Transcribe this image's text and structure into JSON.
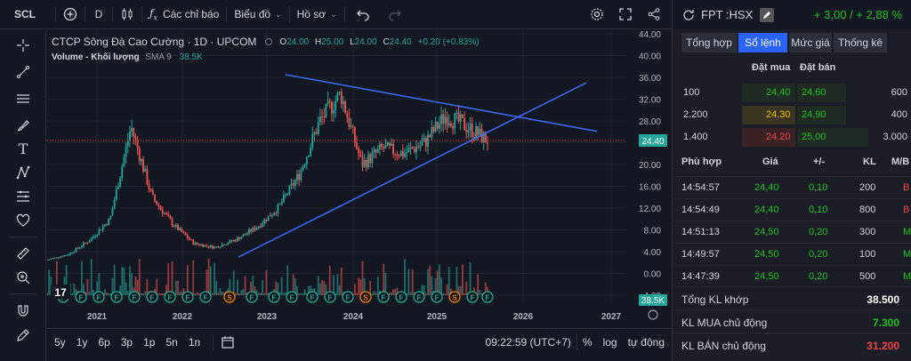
{
  "toolbar": {
    "symbol": "SCL",
    "interval": "D",
    "indicators_label": "Các chỉ báo",
    "chart_menu_label": "Biểu đồ",
    "profile_menu_label": "Hồ sơ"
  },
  "legend": {
    "title": "CTCP Sông Đà Cao Cường · 1D · UPCOM",
    "o_label": "O",
    "o": "24.00",
    "h_label": "H",
    "h": "25.00",
    "l_label": "L",
    "l": "24.00",
    "c_label": "C",
    "c": "24.40",
    "change": "+0.20 (+0.83%)",
    "volume_label": "Volume - Khối lượng",
    "volume_ma": "SMA 9",
    "volume_value": "38.5K"
  },
  "price_axis": [
    "44.00",
    "40.00",
    "36.00",
    "32.00",
    "28.00",
    "24.00",
    "20.00",
    "16.00",
    "12.00",
    "8.00",
    "4.00",
    "0.00",
    "-4.00"
  ],
  "last_price_tag": "24.40",
  "volume_tag": "38.5K",
  "time_axis": [
    "2021",
    "2022",
    "2023",
    "2024",
    "2025",
    "2026",
    "2027"
  ],
  "bottom": {
    "ranges": [
      "5y",
      "1y",
      "6p",
      "3p",
      "1p",
      "5n",
      "1n"
    ],
    "clock": "09:22:59 (UTC+7)",
    "percent": "%",
    "log": "log",
    "auto": "tự động"
  },
  "quote": {
    "symbol": "FPT :HSX",
    "change": "+ 3,00 / + 2,88 %",
    "tabs": [
      "Tổng hợp",
      "Sổ lệnh",
      "Mức giá",
      "Thống kê"
    ],
    "active_tab": "Sổ lệnh",
    "book_headers": {
      "bid": "Đặt mua",
      "ask": "Đặt bán"
    },
    "book": [
      {
        "bid_vol": "100",
        "bid": "24,40",
        "ask": "24,60",
        "ask_vol": "600"
      },
      {
        "bid_vol": "2.200",
        "bid": "24.30",
        "ask": "24,90",
        "ask_vol": "400"
      },
      {
        "bid_vol": "1.400",
        "bid": "24.20",
        "ask": "25,00",
        "ask_vol": "3.000"
      }
    ],
    "trade_headers": {
      "time": "Phù hợp",
      "price": "Giá",
      "change": "+/-",
      "vol": "KL",
      "side": "M/B"
    },
    "trades": [
      {
        "time": "14:54:57",
        "price": "24,40",
        "change": "0,10",
        "vol": "200",
        "side": "B"
      },
      {
        "time": "14:54:49",
        "price": "24,40",
        "change": "0,10",
        "vol": "800",
        "side": "B"
      },
      {
        "time": "14:51:13",
        "price": "24,50",
        "change": "0,20",
        "vol": "300",
        "side": "M"
      },
      {
        "time": "14:49:57",
        "price": "24,50",
        "change": "0,20",
        "vol": "100",
        "side": "M"
      },
      {
        "time": "14:47:39",
        "price": "24,50",
        "change": "0,20",
        "vol": "500",
        "side": "M"
      }
    ],
    "totals": [
      {
        "label": "Tổng KL khớp",
        "value": "38.500"
      },
      {
        "label": "KL MUA chủ động",
        "value": "7.300"
      },
      {
        "label": "KL BÁN chủ động",
        "value": "31.200"
      }
    ]
  },
  "colors": {
    "up": "#26a69a",
    "down": "#ef5350",
    "trendline": "#3d6dff",
    "bg": "#131722"
  },
  "chart_data": {
    "type": "line",
    "title": "CTCP Sông Đà Cao Cường · 1D · UPCOM",
    "x": [
      "2021-01",
      "2021-04",
      "2021-07",
      "2021-10",
      "2022-01",
      "2022-04",
      "2022-07",
      "2022-10",
      "2023-01",
      "2023-04",
      "2023-07",
      "2023-10",
      "2024-01",
      "2024-03",
      "2024-05",
      "2024-07",
      "2024-09",
      "2024-11",
      "2025-01",
      "2025-03",
      "2025-05",
      "2025-07"
    ],
    "series": [
      {
        "values": [
          2.5,
          3.5,
          6,
          10,
          27,
          14,
          9,
          5.5,
          4.8,
          6.2,
          8.5,
          12,
          18,
          28,
          33,
          20,
          23,
          22,
          24,
          29,
          27,
          24.4
        ]
      }
    ],
    "ylim": [
      -4,
      44
    ]
  }
}
